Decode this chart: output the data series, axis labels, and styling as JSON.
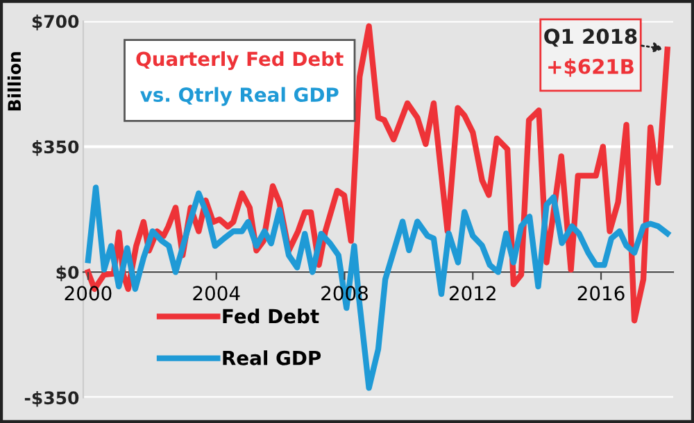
{
  "chart_data": {
    "type": "line",
    "title": "Quarterly Fed Debt",
    "subtitle": "vs. Qtrly Real GDP",
    "ylabel": "Billion",
    "xlim": [
      1999.85,
      2018.25
    ],
    "ylim": [
      -350,
      700
    ],
    "xticks": [
      2000,
      2004,
      2008,
      2012,
      2016
    ],
    "yticks": [
      {
        "value": 700,
        "label": "$700"
      },
      {
        "value": 350,
        "label": "$350"
      },
      {
        "value": 0,
        "label": "$0"
      },
      {
        "value": -350,
        "label": "-$350"
      }
    ],
    "grid": "y",
    "legend": "bottom left",
    "line_style": "solid",
    "marker": "none",
    "annotations": [
      {
        "text": "Q1 2018",
        "x": 2018.07,
        "y": 621
      },
      {
        "text": "+$621B",
        "x": 2018.07,
        "y": 621
      }
    ],
    "series": [
      {
        "name": "Fed Debt",
        "color": "#ee3338",
        "x": [
          2000,
          2000.2,
          2000.5,
          2000.8,
          2000.96,
          2001.1,
          2001.25,
          2001.5,
          2001.73,
          2001.9,
          2002.15,
          2002.35,
          2002.5,
          2002.73,
          2002.95,
          2003.2,
          2003.45,
          2003.67,
          2003.9,
          2004.1,
          2004.36,
          2004.53,
          2004.8,
          2005.04,
          2005.25,
          2005.47,
          2005.76,
          2005.97,
          2006.26,
          2006.55,
          2006.76,
          2006.95,
          2007.2,
          2007.4,
          2007.77,
          2007.99,
          2008.2,
          2008.47,
          2008.76,
          2009.05,
          2009.24,
          2009.53,
          2009.96,
          2010.27,
          2010.53,
          2010.78,
          2011.21,
          2011.53,
          2011.74,
          2012.0,
          2012.29,
          2012.5,
          2012.75,
          2013.08,
          2013.27,
          2013.51,
          2013.75,
          2014.06,
          2014.3,
          2014.52,
          2014.76,
          2015.06,
          2015.28,
          2015.48,
          2015.84,
          2016.06,
          2016.27,
          2016.53,
          2016.79,
          2017.04,
          2017.32,
          2017.54,
          2017.78,
          2018.07
        ],
        "values": [
          0,
          -47,
          -7,
          -4,
          111,
          -7,
          -47,
          73,
          140,
          60,
          114,
          100,
          127,
          180,
          47,
          180,
          114,
          200,
          140,
          147,
          127,
          140,
          220,
          180,
          60,
          87,
          240,
          194,
          60,
          114,
          167,
          167,
          20,
          114,
          227,
          214,
          87,
          545,
          686,
          431,
          424,
          370,
          471,
          431,
          357,
          471,
          114,
          458,
          437,
          390,
          256,
          215,
          373,
          343,
          -34,
          -7,
          424,
          451,
          27,
          168,
          323,
          7,
          269,
          269,
          269,
          350,
          114,
          195,
          411,
          -135,
          -20,
          404,
          249,
          621
        ]
      },
      {
        "name": "Real GDP",
        "color": "#1f9ad6",
        "x": [
          2000,
          2000.24,
          2000.5,
          2000.72,
          2000.96,
          2001.22,
          2001.47,
          2001.73,
          2002.01,
          2002.3,
          2002.52,
          2002.73,
          2003.09,
          2003.45,
          2003.74,
          2003.96,
          2004.24,
          2004.53,
          2004.8,
          2004.99,
          2005.25,
          2005.5,
          2005.71,
          2005.97,
          2006.26,
          2006.52,
          2006.76,
          2007.0,
          2007.27,
          2007.55,
          2007.81,
          2008.06,
          2008.3,
          2008.45,
          2008.76,
          2009.05,
          2009.27,
          2009.81,
          2010.01,
          2010.27,
          2010.59,
          2010.78,
          2011.02,
          2011.25,
          2011.54,
          2011.74,
          2012.0,
          2012.29,
          2012.53,
          2012.79,
          2013.04,
          2013.27,
          2013.51,
          2013.77,
          2014.04,
          2014.3,
          2014.52,
          2014.78,
          2015.09,
          2015.31,
          2015.6,
          2015.84,
          2016.1,
          2016.32,
          2016.58,
          2016.79,
          2017.04,
          2017.32,
          2017.54,
          2017.78,
          2018.07
        ],
        "values": [
          33,
          236,
          7,
          73,
          -40,
          67,
          -47,
          40,
          114,
          87,
          73,
          0,
          114,
          220,
          154,
          73,
          94,
          114,
          114,
          140,
          73,
          114,
          80,
          174,
          47,
          13,
          107,
          0,
          107,
          80,
          47,
          -100,
          73,
          -74,
          -323,
          -215,
          -20,
          141,
          61,
          141,
          101,
          94,
          -61,
          108,
          27,
          168,
          101,
          74,
          20,
          0,
          108,
          27,
          128,
          155,
          -40,
          188,
          209,
          81,
          128,
          108,
          54,
          20,
          20,
          94,
          114,
          74,
          54,
          128,
          135,
          128,
          108
        ]
      }
    ]
  }
}
